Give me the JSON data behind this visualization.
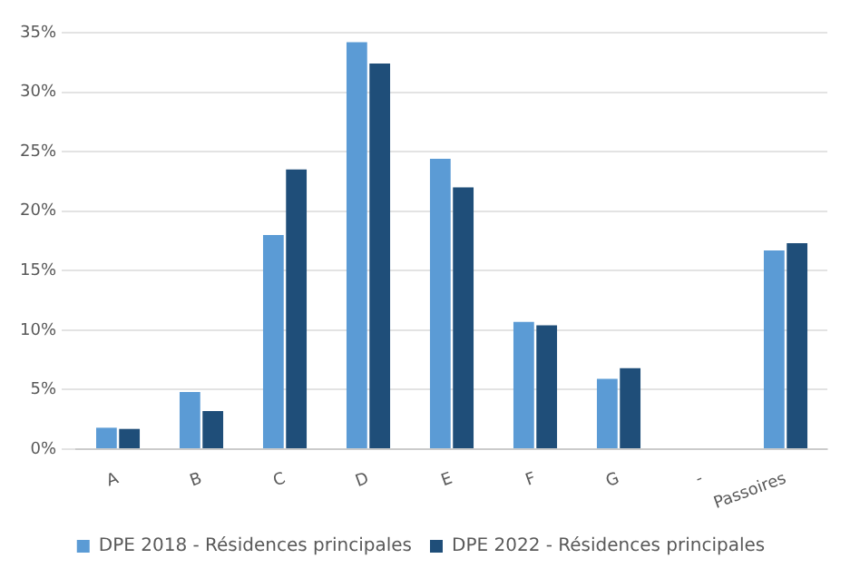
{
  "chart_data": {
    "type": "bar",
    "categories": [
      "A",
      "B",
      "C",
      "D",
      "E",
      "F",
      "G",
      "-",
      "Passoires"
    ],
    "series": [
      {
        "name": "DPE 2018 - Résidences principales",
        "color": "#5b9bd5",
        "values": [
          1.8,
          4.8,
          18.0,
          34.2,
          24.4,
          10.7,
          5.9,
          null,
          16.7
        ]
      },
      {
        "name": "DPE 2022 - Résidences principales",
        "color": "#1f4e79",
        "values": [
          1.7,
          3.2,
          23.5,
          32.4,
          22.0,
          10.4,
          6.8,
          null,
          17.3
        ]
      }
    ],
    "ylim": [
      0,
      35
    ],
    "yticks": [
      {
        "value": 0,
        "label": "0%"
      },
      {
        "value": 5,
        "label": "5%"
      },
      {
        "value": 10,
        "label": "10%"
      },
      {
        "value": 15,
        "label": "15%"
      },
      {
        "value": 20,
        "label": "20%"
      },
      {
        "value": 25,
        "label": "25%"
      },
      {
        "value": 30,
        "label": "30%"
      },
      {
        "value": 35,
        "label": "35%"
      }
    ],
    "grid": "y",
    "legend": "bottom"
  }
}
